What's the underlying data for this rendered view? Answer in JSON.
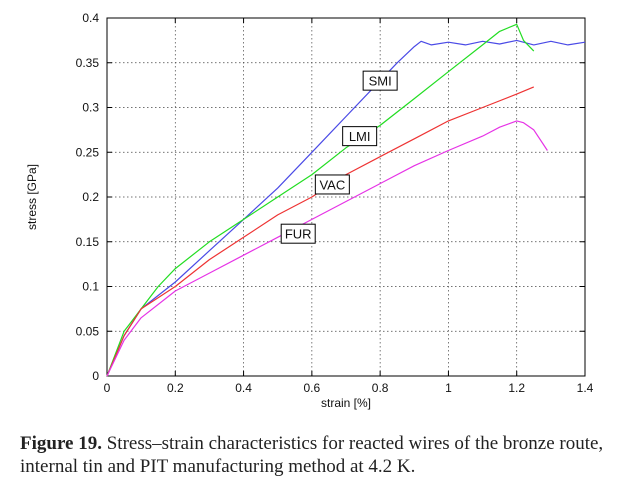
{
  "chart_data": {
    "type": "line",
    "xlabel": "strain [%]",
    "ylabel": "stress [GPa]",
    "xlim": [
      0,
      1.4
    ],
    "ylim": [
      0,
      0.4
    ],
    "xticks": [
      "0",
      "0.2",
      "0.4",
      "0.6",
      "0.8",
      "1",
      "1.2",
      "1.4"
    ],
    "yticks": [
      "0",
      "0.05",
      "0.1",
      "0.15",
      "0.2",
      "0.25",
      "0.3",
      "0.35",
      "0.4"
    ],
    "grid": true,
    "series": [
      {
        "name": "SMI",
        "color": "#4a4ae6",
        "x": [
          0,
          0.05,
          0.1,
          0.2,
          0.3,
          0.4,
          0.5,
          0.6,
          0.7,
          0.8,
          0.85,
          0.9,
          0.92,
          0.95,
          1.0,
          1.05,
          1.1,
          1.15,
          1.2,
          1.25,
          1.3,
          1.35,
          1.4
        ],
        "y": [
          0,
          0.045,
          0.075,
          0.105,
          0.14,
          0.175,
          0.21,
          0.25,
          0.29,
          0.33,
          0.35,
          0.368,
          0.374,
          0.37,
          0.373,
          0.37,
          0.374,
          0.371,
          0.375,
          0.37,
          0.374,
          0.37,
          0.373
        ]
      },
      {
        "name": "LMI",
        "color": "#22dd22",
        "x": [
          0,
          0.05,
          0.1,
          0.15,
          0.2,
          0.3,
          0.4,
          0.5,
          0.6,
          0.7,
          0.8,
          0.9,
          1.0,
          1.1,
          1.15,
          1.2,
          1.22,
          1.25
        ],
        "y": [
          0,
          0.05,
          0.075,
          0.1,
          0.12,
          0.15,
          0.175,
          0.2,
          0.225,
          0.255,
          0.28,
          0.31,
          0.34,
          0.37,
          0.385,
          0.393,
          0.375,
          0.363
        ]
      },
      {
        "name": "VAC",
        "color": "#ee3333",
        "x": [
          0,
          0.05,
          0.1,
          0.2,
          0.3,
          0.4,
          0.5,
          0.6,
          0.7,
          0.8,
          0.9,
          1.0,
          1.1,
          1.2,
          1.25
        ],
        "y": [
          0,
          0.045,
          0.075,
          0.1,
          0.13,
          0.155,
          0.18,
          0.2,
          0.225,
          0.245,
          0.265,
          0.285,
          0.3,
          0.315,
          0.323
        ]
      },
      {
        "name": "FUR",
        "color": "#e633e6",
        "x": [
          0,
          0.05,
          0.1,
          0.2,
          0.3,
          0.4,
          0.5,
          0.6,
          0.7,
          0.8,
          0.9,
          1.0,
          1.1,
          1.15,
          1.2,
          1.22,
          1.25,
          1.29
        ],
        "y": [
          0,
          0.04,
          0.065,
          0.095,
          0.115,
          0.135,
          0.155,
          0.175,
          0.195,
          0.215,
          0.235,
          0.252,
          0.268,
          0.278,
          0.285,
          0.283,
          0.275,
          0.252
        ]
      }
    ],
    "annotations": [
      {
        "text": "SMI",
        "x": 0.8,
        "y": 0.33
      },
      {
        "text": "LMI",
        "x": 0.74,
        "y": 0.268
      },
      {
        "text": "VAC",
        "x": 0.66,
        "y": 0.214
      },
      {
        "text": "FUR",
        "x": 0.56,
        "y": 0.159
      }
    ]
  },
  "caption": {
    "label": "Figure 19.",
    "text": "Stress–strain characteristics for reacted wires of the bronze route, internal tin and PIT manufacturing method at 4.2 K."
  }
}
